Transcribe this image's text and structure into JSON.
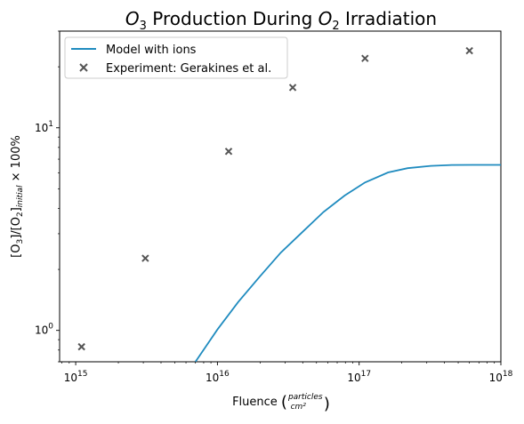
{
  "chart_data": {
    "type": "line",
    "title": "O3 Production During O2 Irradiation",
    "xlabel": "Fluence (particles / cm²)",
    "ylabel": "[O3]/[O2]initial × 100%",
    "xscale": "log",
    "yscale": "log",
    "xlim": [
      770000000000000.0,
      1e+18
    ],
    "ylim": [
      0.7,
      30
    ],
    "x_ticks": [
      {
        "value": 1000000000000000.0,
        "base": "10",
        "exp": "15"
      },
      {
        "value": 1e+16,
        "base": "10",
        "exp": "16"
      },
      {
        "value": 1e+17,
        "base": "10",
        "exp": "17"
      },
      {
        "value": 1e+18,
        "base": "10",
        "exp": "18"
      }
    ],
    "y_ticks": [
      {
        "value": 1,
        "base": "10",
        "exp": "0"
      },
      {
        "value": 10,
        "base": "10",
        "exp": "1"
      }
    ],
    "legend_position": "top-left",
    "series": [
      {
        "name": "Model with ions",
        "kind": "line",
        "color": "#1f8bbf",
        "x": [
          7000000000000000.0,
          1e+16,
          1.4e+16,
          2e+16,
          2.8e+16,
          4e+16,
          5.6e+16,
          7.9e+16,
          1.1e+17,
          1.6e+17,
          2.2e+17,
          3.2e+17,
          4.5e+17,
          6.3e+17,
          1e+18
        ],
        "y": [
          0.7,
          1.01,
          1.38,
          1.85,
          2.42,
          3.07,
          3.84,
          4.63,
          5.37,
          6.02,
          6.32,
          6.49,
          6.55,
          6.56,
          6.56
        ]
      },
      {
        "name": "Experiment: Gerakines et al.",
        "kind": "scatter",
        "marker": "x",
        "color": "#555555",
        "x": [
          1100000000000000.0,
          3100000000000000.0,
          1.2e+16,
          3.4e+16,
          1.1e+17,
          6e+17
        ],
        "y": [
          0.83,
          2.27,
          7.65,
          15.8,
          22.0,
          24.0
        ]
      }
    ]
  }
}
